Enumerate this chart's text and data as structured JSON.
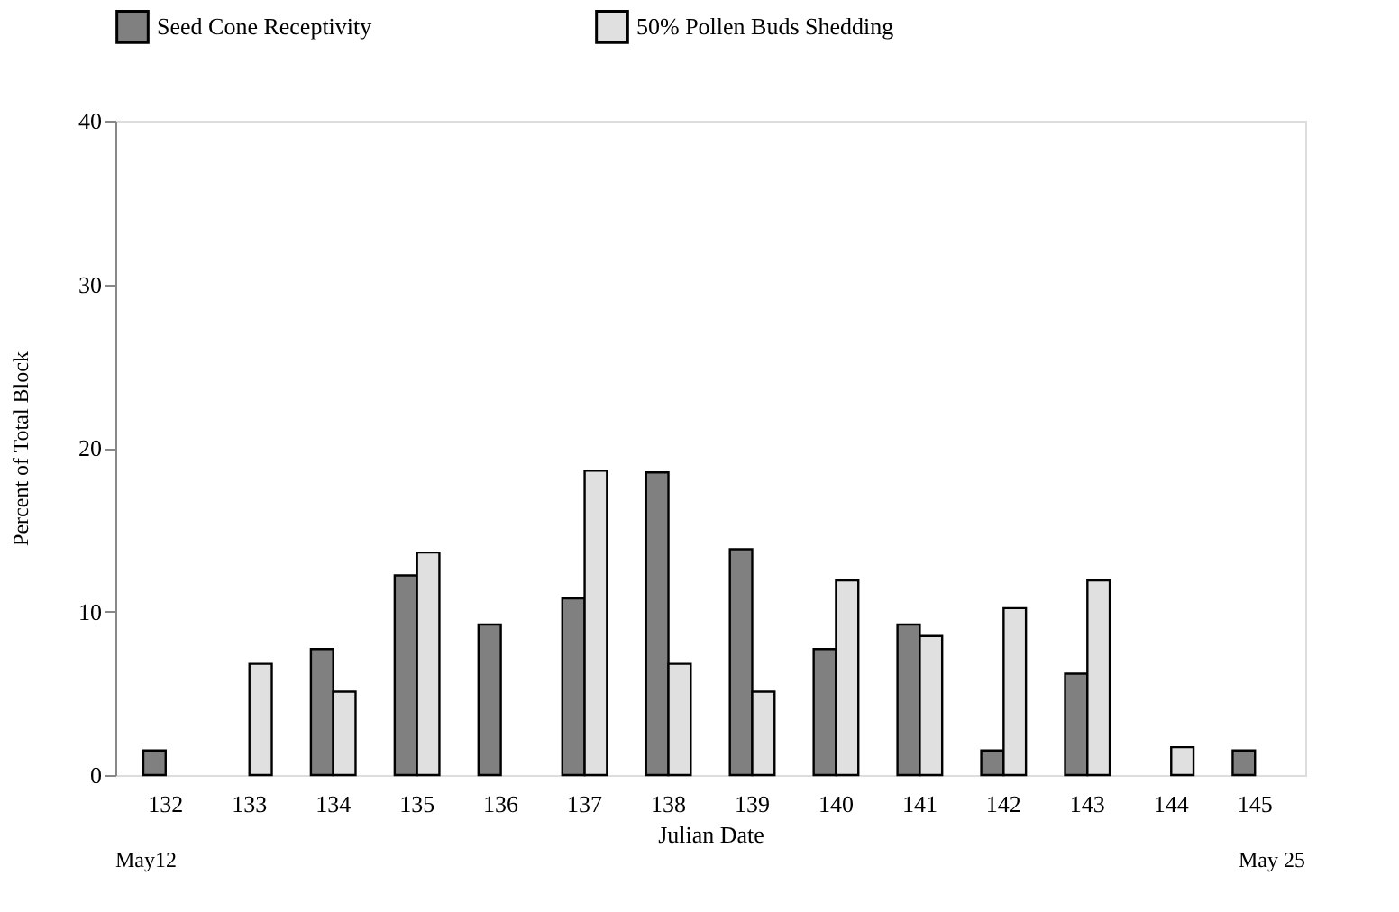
{
  "chart_data": {
    "type": "bar",
    "xlabel": "Julian Date",
    "ylabel": "Percent of Total Block",
    "categories": [
      "132",
      "133",
      "134",
      "135",
      "136",
      "137",
      "138",
      "139",
      "140",
      "141",
      "142",
      "143",
      "144",
      "145"
    ],
    "series": [
      {
        "name": "Seed Cone Receptivity",
        "color": "#808080",
        "values": [
          1.5,
          0,
          7.7,
          12.2,
          9.2,
          10.8,
          18.5,
          13.8,
          7.7,
          9.2,
          1.5,
          6.2,
          0,
          1.5
        ]
      },
      {
        "name": "50% Pollen Buds Shedding",
        "color": "#e0e0e0",
        "values": [
          0,
          6.8,
          5.1,
          13.6,
          0,
          18.6,
          6.8,
          5.1,
          11.9,
          8.5,
          10.2,
          11.9,
          1.7,
          0
        ]
      }
    ],
    "ylim": [
      0,
      40
    ],
    "yticks": [
      0,
      10,
      20,
      30,
      40
    ],
    "grid": false,
    "legend": "top",
    "annotations": [
      "May12",
      "May 25"
    ]
  }
}
